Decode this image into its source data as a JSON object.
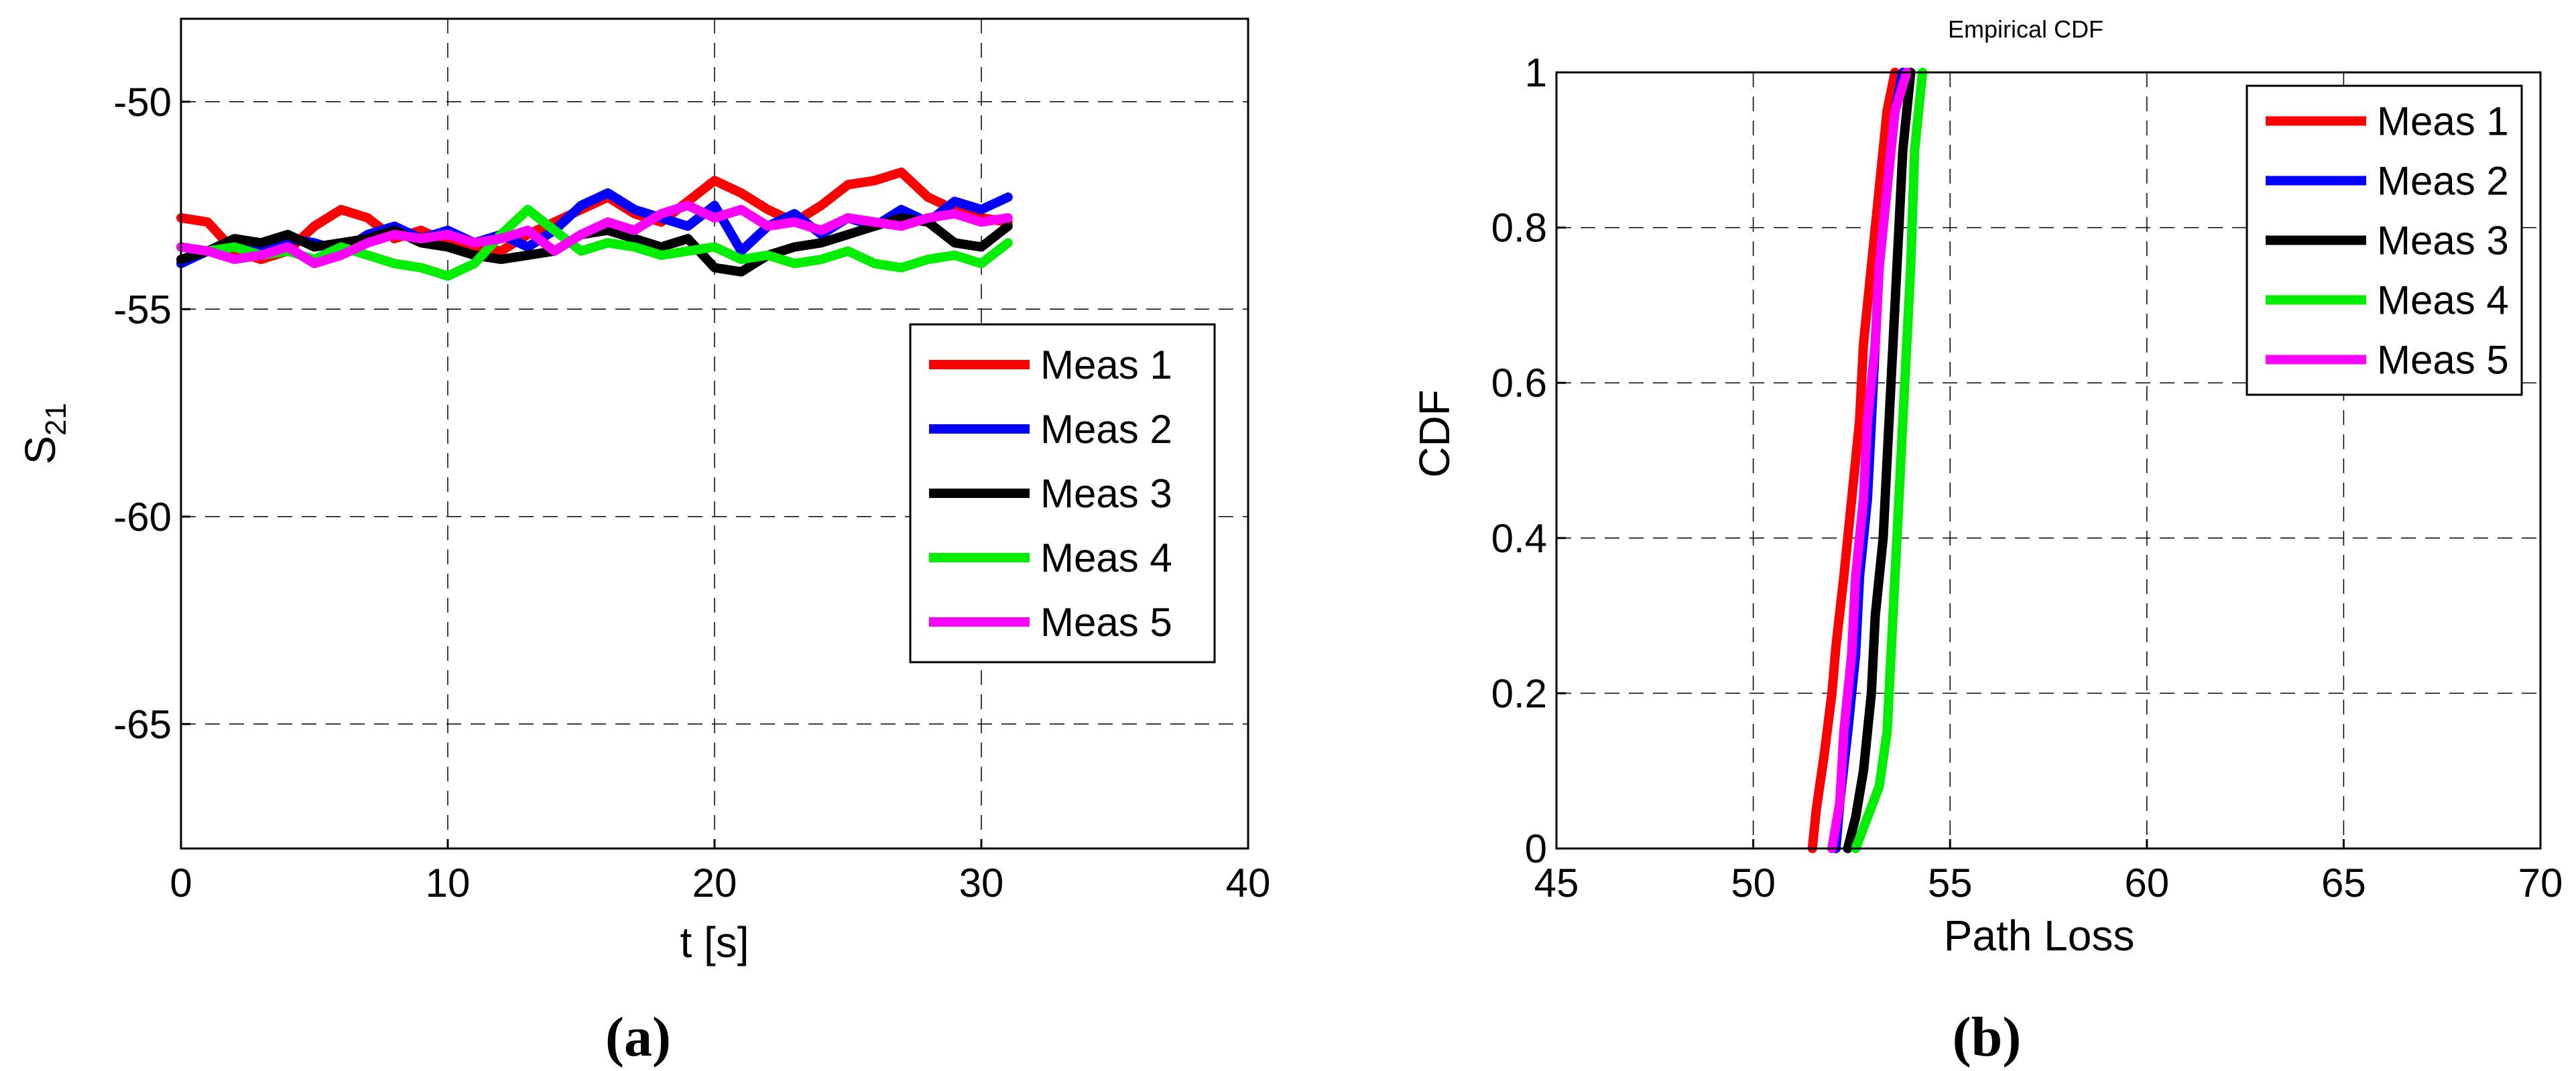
{
  "chart_data": [
    {
      "type": "line",
      "panel_label": "(a)",
      "title": "",
      "xlabel": "t [s]",
      "ylabel": "S",
      "ylabel_subscript": "21",
      "xlim": [
        0,
        40
      ],
      "ylim": [
        -68,
        -48
      ],
      "xticks": [
        0,
        10,
        20,
        30,
        40
      ],
      "yticks": [
        -65,
        -60,
        -55,
        -50
      ],
      "grid": true,
      "legend_position": "right",
      "series": [
        {
          "name": "Meas 1",
          "color": "#ff0000",
          "x": [
            0,
            1,
            2,
            3,
            4,
            5,
            6,
            7,
            8,
            9,
            10,
            11,
            12,
            13,
            14,
            15,
            16,
            17,
            18,
            19,
            20,
            21,
            22,
            23,
            24,
            25,
            26,
            27,
            28,
            29,
            30,
            31
          ],
          "y": [
            -52.8,
            -52.9,
            -53.6,
            -53.8,
            -53.6,
            -53.0,
            -52.6,
            -52.8,
            -53.3,
            -53.1,
            -53.4,
            -53.5,
            -53.6,
            -53.2,
            -52.9,
            -52.6,
            -52.3,
            -52.7,
            -52.9,
            -52.4,
            -51.9,
            -52.2,
            -52.6,
            -52.9,
            -52.5,
            -52.0,
            -51.9,
            -51.7,
            -52.3,
            -52.6,
            -52.8,
            -52.9
          ]
        },
        {
          "name": "Meas 2",
          "color": "#0000ff",
          "x": [
            0,
            1,
            2,
            3,
            4,
            5,
            6,
            7,
            8,
            9,
            10,
            11,
            12,
            13,
            14,
            15,
            16,
            17,
            18,
            19,
            20,
            21,
            22,
            23,
            24,
            25,
            26,
            27,
            28,
            29,
            30,
            31
          ],
          "y": [
            -53.9,
            -53.6,
            -53.4,
            -53.5,
            -53.3,
            -53.4,
            -53.6,
            -53.2,
            -53.0,
            -53.3,
            -53.1,
            -53.4,
            -53.2,
            -53.5,
            -53.1,
            -52.5,
            -52.2,
            -52.6,
            -52.8,
            -53.0,
            -52.5,
            -53.6,
            -53.0,
            -52.7,
            -53.2,
            -52.8,
            -53.0,
            -52.6,
            -52.9,
            -52.4,
            -52.6,
            -52.3
          ]
        },
        {
          "name": "Meas 3",
          "color": "#000000",
          "x": [
            0,
            1,
            2,
            3,
            4,
            5,
            6,
            7,
            8,
            9,
            10,
            11,
            12,
            13,
            14,
            15,
            16,
            17,
            18,
            19,
            20,
            21,
            22,
            23,
            24,
            25,
            26,
            27,
            28,
            29,
            30,
            31
          ],
          "y": [
            -53.8,
            -53.6,
            -53.3,
            -53.4,
            -53.2,
            -53.5,
            -53.4,
            -53.3,
            -53.1,
            -53.4,
            -53.5,
            -53.7,
            -53.8,
            -53.7,
            -53.6,
            -53.2,
            -53.1,
            -53.3,
            -53.5,
            -53.3,
            -54.0,
            -54.1,
            -53.7,
            -53.5,
            -53.4,
            -53.2,
            -53.0,
            -52.8,
            -52.9,
            -53.4,
            -53.5,
            -53.0
          ]
        },
        {
          "name": "Meas 4",
          "color": "#00ee00",
          "x": [
            0,
            1,
            2,
            3,
            4,
            5,
            6,
            7,
            8,
            9,
            10,
            11,
            12,
            13,
            14,
            15,
            16,
            17,
            18,
            19,
            20,
            21,
            22,
            23,
            24,
            25,
            26,
            27,
            28,
            29,
            30,
            31
          ],
          "y": [
            -53.5,
            -53.6,
            -53.5,
            -53.7,
            -53.6,
            -53.8,
            -53.5,
            -53.7,
            -53.9,
            -54.0,
            -54.2,
            -53.9,
            -53.2,
            -52.6,
            -53.1,
            -53.6,
            -53.4,
            -53.5,
            -53.7,
            -53.6,
            -53.5,
            -53.8,
            -53.7,
            -53.9,
            -53.8,
            -53.6,
            -53.9,
            -54.0,
            -53.8,
            -53.7,
            -53.9,
            -53.4
          ]
        },
        {
          "name": "Meas 5",
          "color": "#ff00ff",
          "x": [
            0,
            1,
            2,
            3,
            4,
            5,
            6,
            7,
            8,
            9,
            10,
            11,
            12,
            13,
            14,
            15,
            16,
            17,
            18,
            19,
            20,
            21,
            22,
            23,
            24,
            25,
            26,
            27,
            28,
            29,
            30,
            31
          ],
          "y": [
            -53.5,
            -53.6,
            -53.8,
            -53.7,
            -53.5,
            -53.9,
            -53.7,
            -53.4,
            -53.2,
            -53.3,
            -53.2,
            -53.4,
            -53.3,
            -53.1,
            -53.6,
            -53.2,
            -52.9,
            -53.1,
            -52.7,
            -52.5,
            -52.8,
            -52.6,
            -53.0,
            -52.9,
            -53.1,
            -52.8,
            -52.9,
            -53.0,
            -52.8,
            -52.7,
            -52.9,
            -52.8
          ]
        }
      ]
    },
    {
      "type": "line",
      "panel_label": "(b)",
      "title": "Empirical CDF",
      "xlabel": "Path Loss",
      "ylabel": "CDF",
      "xlim": [
        45,
        70
      ],
      "ylim": [
        0,
        1
      ],
      "xticks": [
        45,
        50,
        55,
        60,
        65,
        70
      ],
      "yticks": [
        0,
        0.2,
        0.4,
        0.6,
        0.8,
        1
      ],
      "grid": true,
      "legend_position": "top-right",
      "series": [
        {
          "name": "Meas 1",
          "color": "#ff0000",
          "x": [
            51.5,
            51.6,
            51.8,
            52.0,
            52.1,
            52.3,
            52.5,
            52.7,
            52.8,
            53.0,
            53.2,
            53.4,
            53.6
          ],
          "y": [
            0,
            0.05,
            0.12,
            0.2,
            0.26,
            0.35,
            0.45,
            0.55,
            0.65,
            0.75,
            0.85,
            0.95,
            1.0
          ]
        },
        {
          "name": "Meas 2",
          "color": "#0000ff",
          "x": [
            52.1,
            52.2,
            52.4,
            52.6,
            52.7,
            52.9,
            53.0,
            53.1,
            53.2,
            53.4,
            53.6,
            53.8
          ],
          "y": [
            0,
            0.06,
            0.15,
            0.25,
            0.35,
            0.45,
            0.55,
            0.65,
            0.75,
            0.85,
            0.95,
            1.0
          ]
        },
        {
          "name": "Meas 3",
          "color": "#000000",
          "x": [
            52.4,
            52.6,
            52.8,
            53.0,
            53.1,
            53.3,
            53.4,
            53.5,
            53.6,
            53.7,
            53.8,
            54.0
          ],
          "y": [
            0,
            0.04,
            0.1,
            0.2,
            0.3,
            0.4,
            0.5,
            0.6,
            0.7,
            0.8,
            0.9,
            1.0
          ]
        },
        {
          "name": "Meas 4",
          "color": "#00ee00",
          "x": [
            52.6,
            52.9,
            53.2,
            53.4,
            53.5,
            53.6,
            53.7,
            53.8,
            53.9,
            54.0,
            54.1,
            54.3
          ],
          "y": [
            0,
            0.04,
            0.08,
            0.15,
            0.25,
            0.35,
            0.45,
            0.55,
            0.65,
            0.75,
            0.9,
            1.0
          ]
        },
        {
          "name": "Meas 5",
          "color": "#ff00ff",
          "x": [
            52.0,
            52.2,
            52.3,
            52.5,
            52.6,
            52.8,
            52.9,
            53.1,
            53.2,
            53.4,
            53.6,
            53.9
          ],
          "y": [
            0,
            0.06,
            0.15,
            0.25,
            0.35,
            0.45,
            0.55,
            0.65,
            0.75,
            0.85,
            0.95,
            1.0
          ]
        }
      ]
    }
  ]
}
